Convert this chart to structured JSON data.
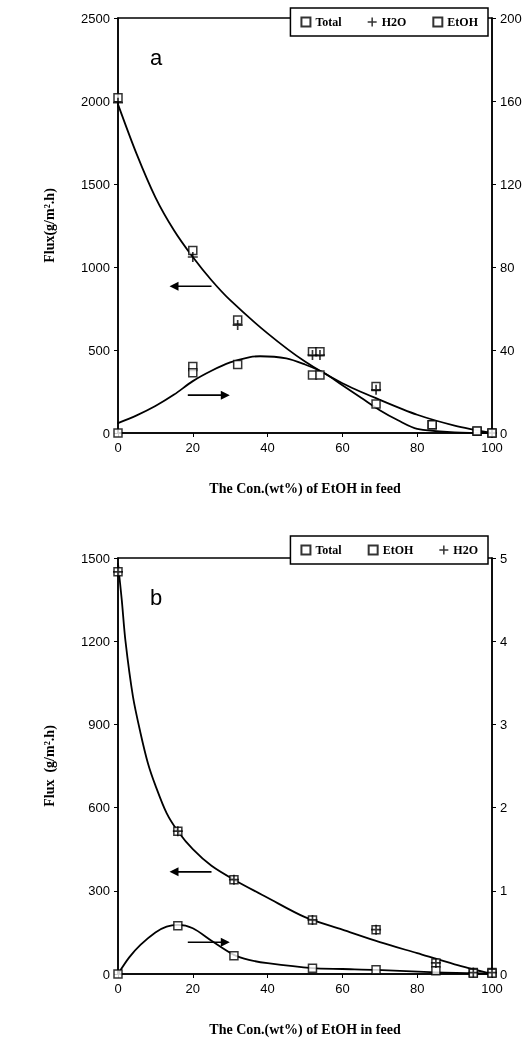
{
  "chart_data": [
    {
      "type": "scatter",
      "xlabel": "The Con.(wt%) of EtOH in feed",
      "ylabel": "Flux(g/m².h)",
      "annotations": [
        "a"
      ],
      "xlim": [
        0,
        100
      ],
      "xticks": [
        0,
        20,
        40,
        60,
        80,
        100
      ],
      "ylim": [
        0,
        2500
      ],
      "yticks": [
        0,
        500,
        1000,
        1500,
        2000,
        2500
      ],
      "y2lim": [
        0,
        200
      ],
      "y2ticks": [
        0,
        40,
        80,
        120,
        160,
        200
      ],
      "legend": "top right",
      "grid": false,
      "series": [
        {
          "name": "Total",
          "color": "#000000",
          "marker": "square",
          "x": [
            0,
            20,
            32,
            52,
            54,
            69,
            84,
            96,
            100
          ],
          "values": [
            2020,
            1100,
            680,
            490,
            490,
            280,
            50,
            10,
            0
          ]
        },
        {
          "name": "H2O",
          "color": "#000000",
          "marker": "cross",
          "x": [
            0,
            20,
            32,
            52,
            54,
            69,
            84,
            96,
            100
          ],
          "values": [
            1990,
            1060,
            650,
            470,
            470,
            260,
            null,
            null,
            0
          ]
        },
        {
          "name": "EtOH",
          "color": "#000000",
          "marker": "square",
          "axis": "y2",
          "x": [
            0,
            20,
            20,
            32,
            52,
            54,
            69,
            84,
            96,
            100
          ],
          "values": [
            0,
            32,
            29,
            33,
            28,
            28,
            14,
            4,
            1,
            0
          ]
        },
        {
          "type": "line",
          "color": "#000000",
          "marker": "none",
          "line_style": "solid",
          "x": [
            0,
            5,
            10,
            15,
            20,
            25,
            30,
            40,
            50,
            60,
            70,
            80,
            90,
            100
          ],
          "values": [
            1980,
            1680,
            1420,
            1220,
            1060,
            920,
            800,
            600,
            430,
            300,
            200,
            110,
            45,
            0
          ]
        },
        {
          "type": "line",
          "color": "#000000",
          "marker": "none",
          "line_style": "solid",
          "axis": "y2",
          "x": [
            0,
            5,
            10,
            15,
            20,
            25,
            30,
            35,
            38,
            45,
            50,
            55,
            60,
            65,
            70,
            75,
            80,
            90,
            100
          ],
          "values": [
            4.8,
            8.5,
            13,
            18.5,
            25,
            30,
            34,
            36.5,
            37,
            36,
            33,
            29,
            23,
            17,
            11,
            6,
            2,
            0.3,
            0
          ]
        }
      ]
    },
    {
      "type": "scatter",
      "xlabel": "The Con.(wt%) of EtOH in feed",
      "ylabel": "Flux  (g/m².h)",
      "annotations": [
        "b"
      ],
      "xlim": [
        0,
        100
      ],
      "xticks": [
        0,
        20,
        40,
        60,
        80,
        100
      ],
      "ylim": [
        0,
        1500
      ],
      "yticks": [
        0,
        300,
        600,
        900,
        1200,
        1500
      ],
      "y2lim": [
        0,
        5
      ],
      "y2ticks": [
        0,
        1,
        2,
        3,
        4,
        5
      ],
      "legend": "top right",
      "grid": false,
      "series": [
        {
          "name": "Total",
          "color": "#000000",
          "marker": "square",
          "x": [
            0,
            16,
            31,
            52,
            69,
            85,
            95,
            100
          ],
          "values": [
            1450,
            515,
            340,
            195,
            160,
            40,
            5,
            5
          ]
        },
        {
          "name": "EtOH",
          "color": "#000000",
          "marker": "square",
          "axis": "y2",
          "x": [
            0,
            16,
            31,
            52,
            69,
            85,
            95,
            100
          ],
          "values": [
            0,
            0.58,
            0.22,
            0.07,
            0.05,
            0.04,
            0.01,
            0.01
          ]
        },
        {
          "name": "H2O",
          "color": "#000000",
          "marker": "cross",
          "x": [
            0,
            16,
            31,
            52,
            69,
            85,
            95,
            100
          ],
          "values": [
            1450,
            515,
            340,
            195,
            160,
            40,
            5,
            5
          ]
        },
        {
          "type": "line",
          "color": "#000000",
          "marker": "none",
          "line_style": "solid",
          "x": [
            0,
            1,
            2,
            4,
            6,
            8,
            10,
            13,
            16,
            20,
            25,
            31,
            40,
            50,
            60,
            70,
            80,
            90,
            100
          ],
          "values": [
            1480,
            1350,
            1200,
            1000,
            870,
            760,
            680,
            580,
            515,
            450,
            390,
            340,
            275,
            205,
            160,
            115,
            75,
            35,
            0
          ]
        },
        {
          "type": "line",
          "color": "#000000",
          "marker": "none",
          "line_style": "solid",
          "axis": "y2",
          "x": [
            0,
            3,
            6,
            10,
            13,
            16,
            20,
            25,
            31,
            35,
            40,
            52,
            60,
            69,
            85,
            95,
            100
          ],
          "values": [
            0,
            0.2,
            0.35,
            0.5,
            0.57,
            0.59,
            0.55,
            0.4,
            0.23,
            0.17,
            0.13,
            0.07,
            0.06,
            0.05,
            0.02,
            0.01,
            0
          ]
        }
      ]
    }
  ]
}
